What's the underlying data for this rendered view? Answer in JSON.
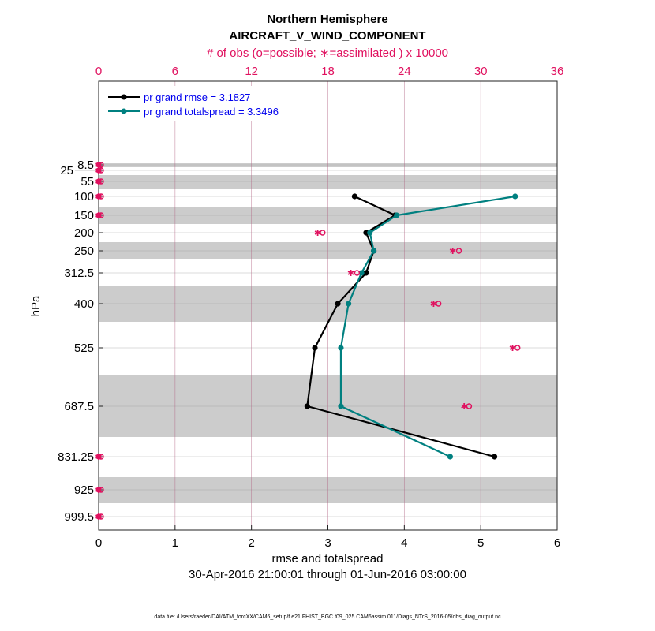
{
  "chart_data": {
    "type": "line",
    "title": "Northern Hemisphere",
    "subtitle": "AIRCRAFT_V_WIND_COMPONENT",
    "top_axis_label": "# of obs (o=possible; ∗=assimilated ) x 10000",
    "xlabel": "rmse and totalspread",
    "ylabel": "hPa",
    "date_range": "30-Apr-2016 21:00:01 through 01-Jun-2016 03:00:00",
    "footer": "data file: /Users/raeder/DAI/ATM_forcXX/CAM6_setup/f.e21.FHIST_BGC.f09_025.CAM6assim.011/Diags_NTrS_2016-05/obs_diag_output.nc",
    "xlim": [
      0,
      6
    ],
    "xticks": [
      "0",
      "1",
      "2",
      "3",
      "4",
      "5",
      "6"
    ],
    "top_xlim": [
      0,
      36
    ],
    "top_xticks": [
      "0",
      "6",
      "12",
      "18",
      "24",
      "30",
      "36"
    ],
    "levels": [
      "8.5",
      "25",
      "55",
      "100",
      "150",
      "200",
      "250",
      "312.5",
      "400",
      "525",
      "687.5",
      "831.25",
      "925",
      "999.5"
    ],
    "series": [
      {
        "name": "pr grand rmse = 3.1827",
        "color": "#000000",
        "values": [
          null,
          null,
          null,
          3.35,
          3.88,
          3.5,
          3.6,
          3.5,
          3.13,
          2.83,
          2.73,
          5.18,
          null,
          null
        ]
      },
      {
        "name": "pr grand totalspread = 3.3496",
        "color": "#008080",
        "values": [
          null,
          null,
          null,
          5.45,
          3.9,
          3.55,
          3.6,
          3.44,
          3.27,
          3.17,
          3.17,
          4.6,
          null,
          null
        ]
      }
    ],
    "obs_possible": [
      0,
      0,
      0,
      0,
      0,
      17.4,
      28.1,
      20.1,
      26.5,
      32.7,
      28.9,
      0,
      0,
      0
    ],
    "obs_assimilated": [
      0,
      0,
      0,
      0,
      0,
      17.2,
      27.8,
      19.8,
      26.3,
      32.5,
      28.7,
      0,
      0,
      0
    ],
    "obs_color": "#e0115f",
    "legend_placement": "top-left",
    "grid": true
  }
}
